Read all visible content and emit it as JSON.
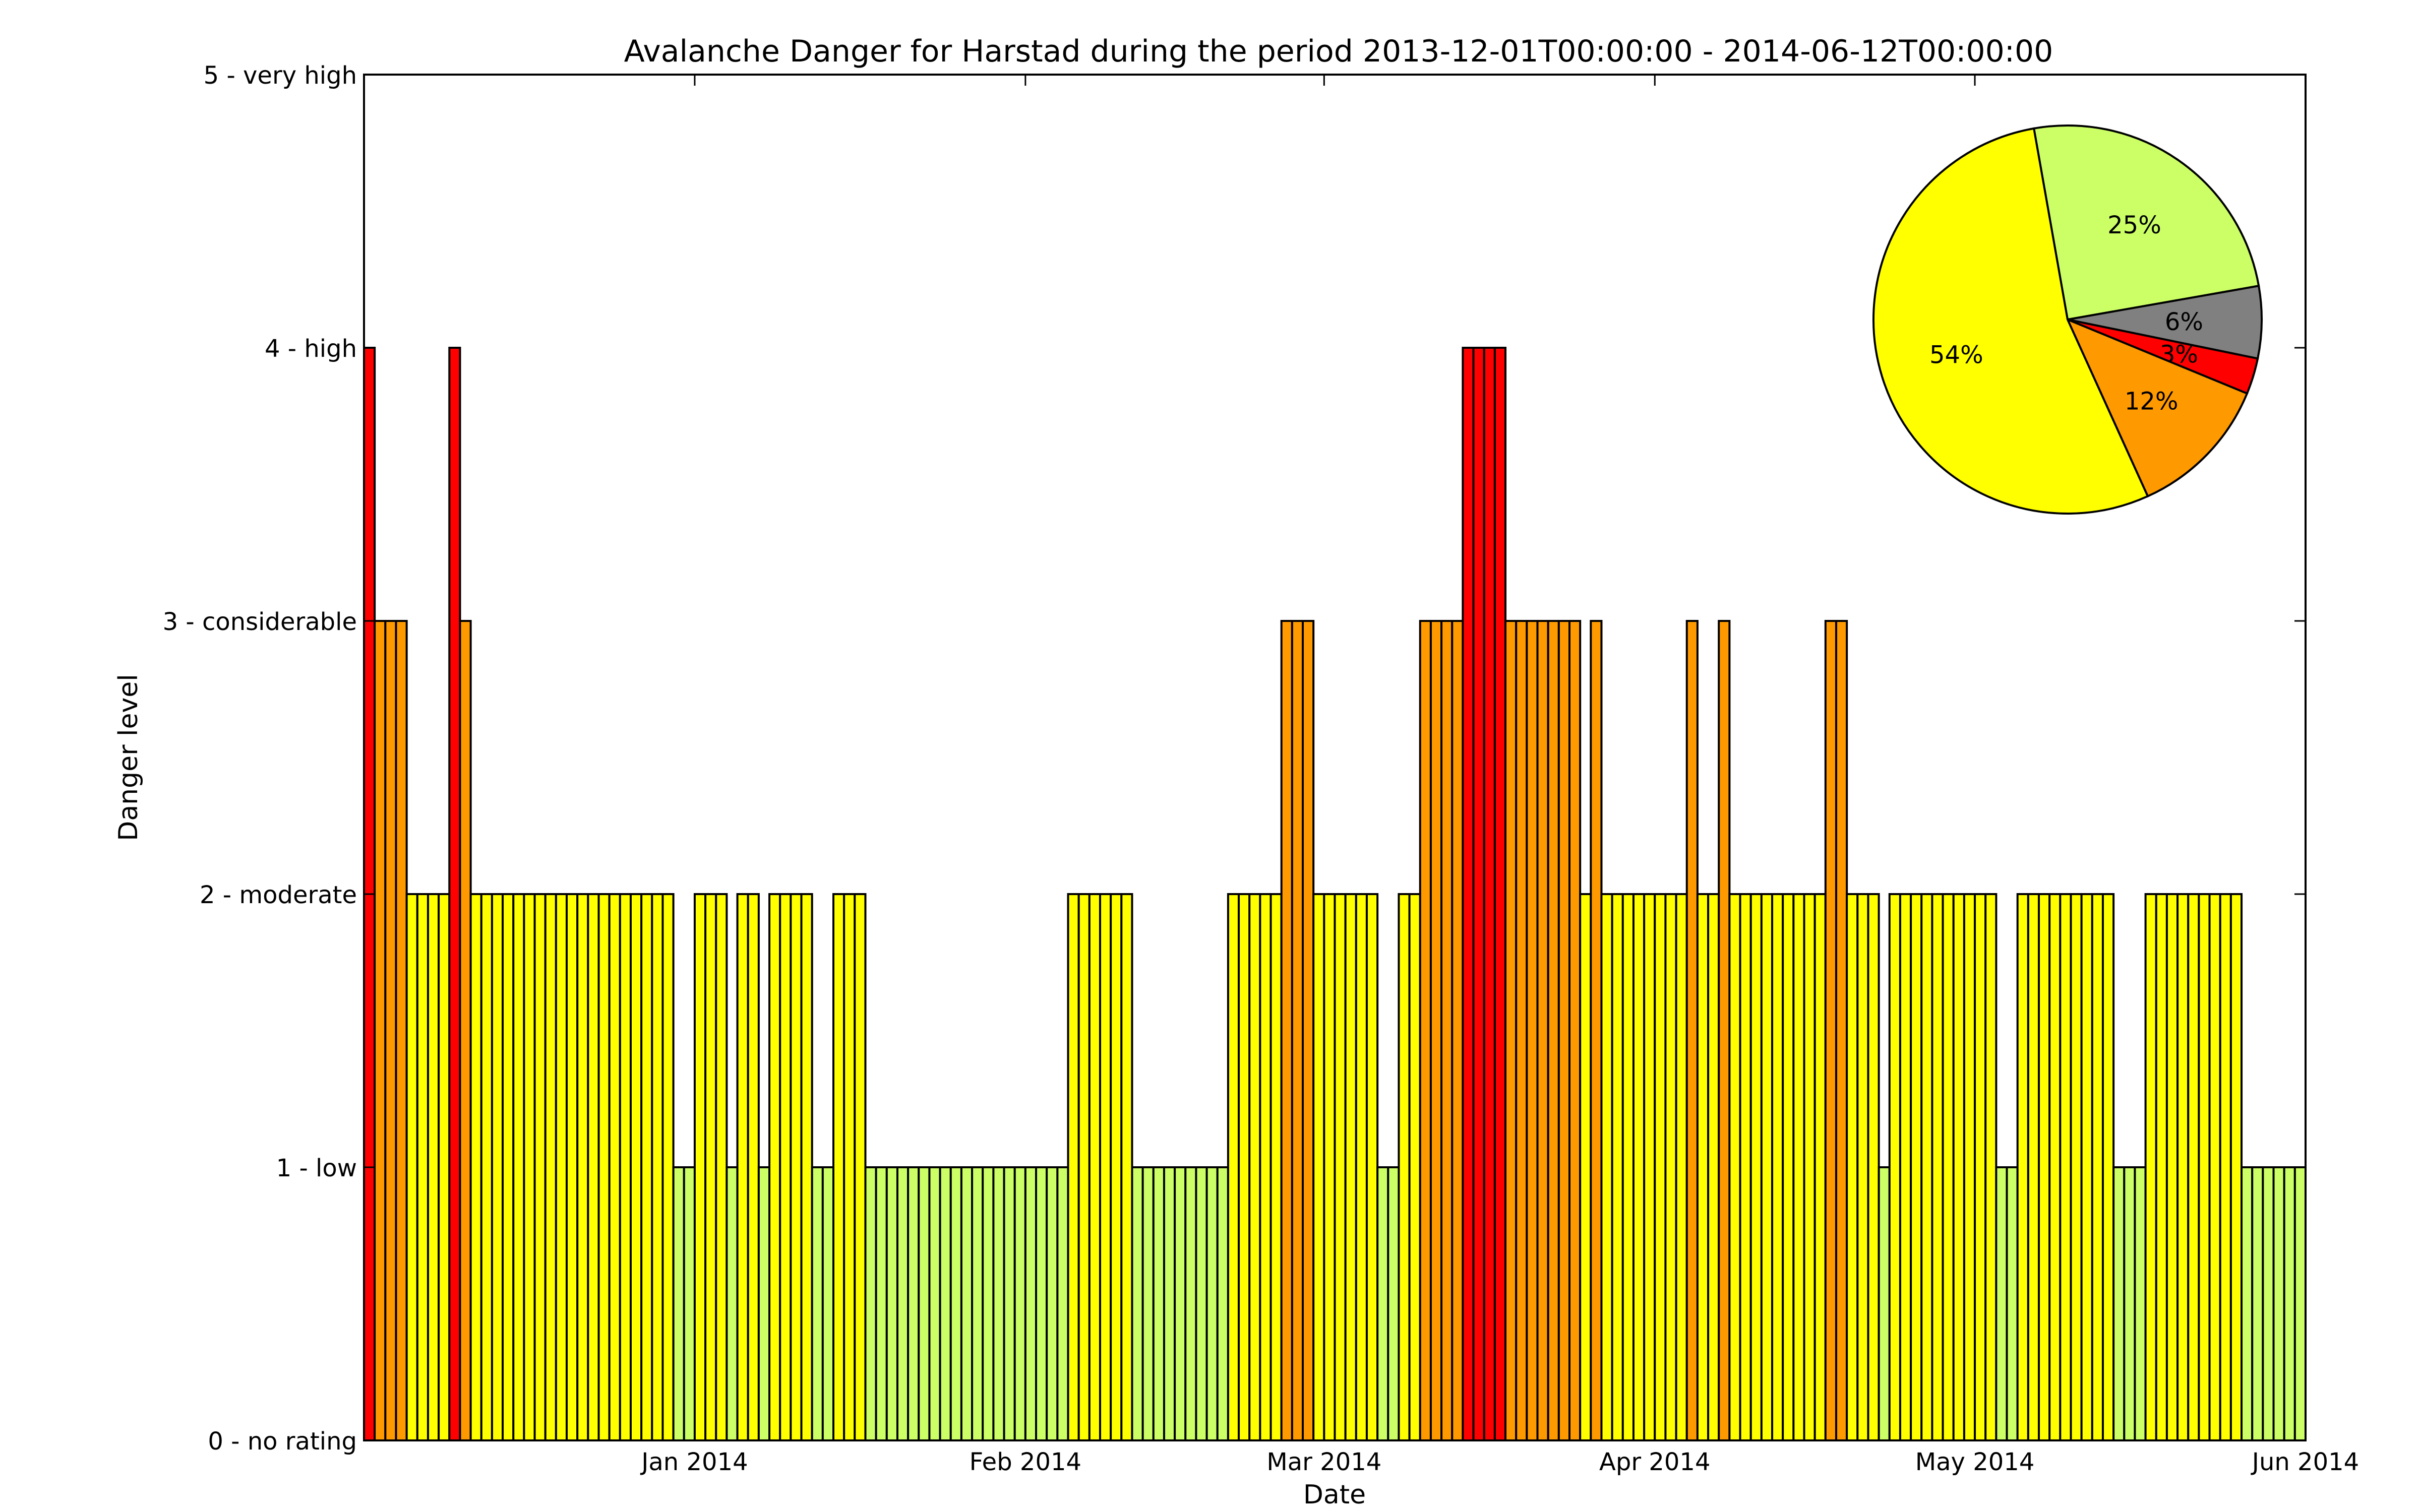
{
  "chart_data": [
    {
      "type": "bar",
      "title": "Avalanche Danger for Harstad during the period 2013-12-01T00:00:00 - 2014-06-12T00:00:00",
      "xlabel": "Date",
      "ylabel": "Danger level",
      "xlim": [
        "2013-12-01",
        "2014-06-01"
      ],
      "ylim": [
        0,
        5
      ],
      "grid": false,
      "x_ticks": [
        "Jan 2014",
        "Feb 2014",
        "Mar 2014",
        "Apr 2014",
        "May 2014",
        "Jun 2014"
      ],
      "y_ticks": [
        "0 - no rating",
        "1 - low",
        "2 - moderate",
        "3 - considerable",
        "4 - high",
        "5 - very high"
      ],
      "level_colors": {
        "1": "#ccff66",
        "2": "#ffff00",
        "3": "#ff9900",
        "4": "#ff0000"
      },
      "start_date": "2013-12-01",
      "values": [
        4,
        3,
        3,
        3,
        2,
        2,
        2,
        2,
        4,
        3,
        2,
        2,
        2,
        2,
        2,
        2,
        2,
        2,
        2,
        2,
        2,
        2,
        2,
        2,
        2,
        2,
        2,
        2,
        2,
        1,
        1,
        2,
        2,
        2,
        1,
        2,
        2,
        1,
        2,
        2,
        2,
        2,
        1,
        1,
        2,
        2,
        2,
        1,
        1,
        1,
        1,
        1,
        1,
        1,
        1,
        1,
        1,
        1,
        1,
        1,
        1,
        1,
        1,
        1,
        1,
        1,
        2,
        2,
        2,
        2,
        2,
        2,
        1,
        1,
        1,
        1,
        1,
        1,
        1,
        1,
        1,
        2,
        2,
        2,
        2,
        2,
        3,
        3,
        3,
        2,
        2,
        2,
        2,
        2,
        2,
        1,
        1,
        2,
        2,
        3,
        3,
        3,
        3,
        4,
        4,
        4,
        4,
        3,
        3,
        3,
        3,
        3,
        3,
        3,
        2,
        3,
        2,
        2,
        2,
        2,
        2,
        2,
        2,
        2,
        3,
        2,
        2,
        3,
        2,
        2,
        2,
        2,
        2,
        2,
        2,
        2,
        2,
        3,
        3,
        2,
        2,
        2,
        1,
        2,
        2,
        2,
        2,
        2,
        2,
        2,
        2,
        2,
        2,
        1,
        1,
        2,
        2,
        2,
        2,
        2,
        2,
        2,
        2,
        2,
        1,
        1,
        1,
        2,
        2,
        2,
        2,
        2,
        2,
        2,
        2,
        2,
        1,
        1,
        1,
        1,
        1,
        1,
        1,
        1,
        1
      ]
    },
    {
      "type": "pie",
      "slices": [
        {
          "label": "25%",
          "value": 25,
          "color": "#ccff66"
        },
        {
          "label": "6%",
          "value": 6,
          "color": "#808080"
        },
        {
          "label": "3%",
          "value": 3,
          "color": "#ff0000"
        },
        {
          "label": "12%",
          "value": 12,
          "color": "#ff9900"
        },
        {
          "label": "54%",
          "value": 54,
          "color": "#ffff00"
        }
      ]
    }
  ]
}
